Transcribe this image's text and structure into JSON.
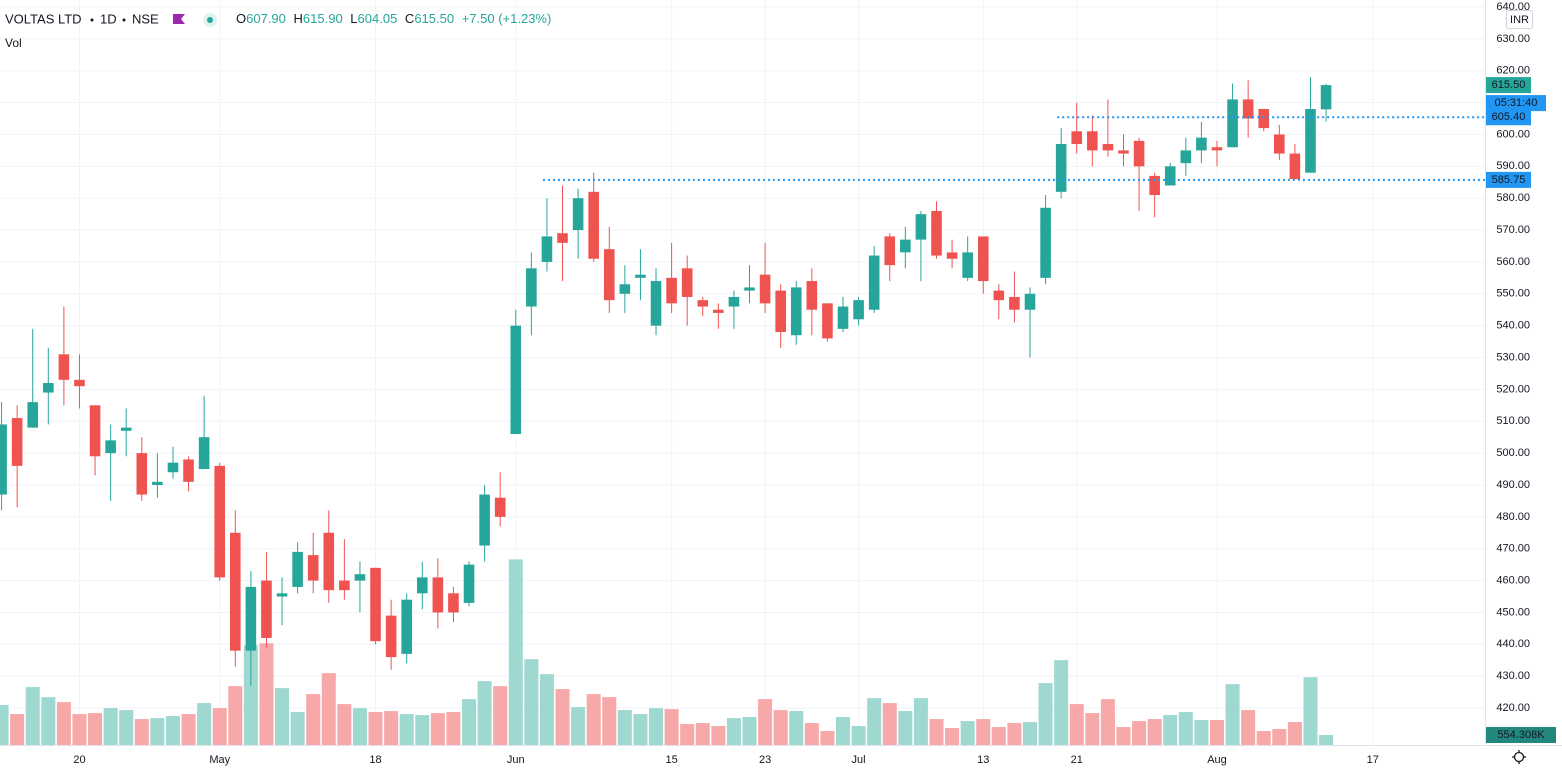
{
  "header": {
    "symbol": "VOLTAS LTD",
    "interval": "1D",
    "exchange": "NSE",
    "ohlc": [
      [
        "O",
        "607.90"
      ],
      [
        "H",
        "615.90"
      ],
      [
        "L",
        "604.05"
      ],
      [
        "C",
        "615.50"
      ]
    ],
    "change": "+7.50 (+1.23%)",
    "volume_title": "Vol",
    "currency": "INR"
  },
  "chart_data": {
    "type": "candlestick",
    "open": [
      487,
      511,
      508,
      519,
      531,
      523,
      515,
      500,
      507,
      500,
      490,
      494,
      498,
      495,
      496,
      475,
      438,
      460,
      455,
      458,
      468,
      475,
      460,
      460,
      464,
      449,
      437,
      456,
      461,
      456,
      453,
      471,
      486,
      506,
      546,
      560,
      569,
      570,
      582,
      564,
      550,
      555,
      540,
      555,
      558,
      548,
      545,
      546,
      551,
      556,
      551,
      537,
      554,
      547,
      539,
      542,
      545,
      568,
      563,
      567,
      576,
      563,
      555,
      568,
      551,
      549,
      545,
      555,
      582,
      601,
      601,
      597,
      595,
      598,
      587,
      584,
      591,
      595,
      596,
      596,
      611,
      608,
      600,
      594,
      588,
      607.9
    ],
    "high": [
      516,
      515,
      539,
      533,
      546,
      531,
      515,
      509,
      514,
      505,
      500,
      502,
      499,
      518,
      497,
      482,
      463,
      469,
      461,
      472,
      475,
      482,
      473,
      466,
      464,
      454,
      456,
      466,
      467,
      458,
      466,
      490,
      494,
      545,
      563,
      580,
      584,
      583,
      588,
      571,
      559,
      564,
      558,
      566,
      562,
      549,
      547,
      551,
      559,
      566,
      553,
      554,
      558,
      547,
      549,
      549,
      565,
      569,
      571,
      576,
      579,
      567,
      568,
      568,
      553,
      557,
      552,
      581,
      602,
      610,
      606,
      611,
      600,
      599,
      588,
      591,
      599,
      604,
      598,
      616,
      617,
      608,
      603,
      597,
      618,
      615.9
    ],
    "low": [
      482,
      483,
      508,
      509,
      515,
      514,
      493,
      485,
      499,
      485,
      486,
      492,
      488,
      495,
      460,
      433,
      427,
      439,
      446,
      456,
      456,
      453,
      454,
      450,
      440,
      432,
      434,
      451,
      445,
      447,
      452,
      466,
      477,
      506,
      537,
      557,
      554,
      561,
      560,
      544,
      544,
      548,
      537,
      544,
      540,
      543,
      539,
      539,
      547,
      544,
      533,
      534,
      537,
      535,
      538,
      540,
      544,
      554,
      558,
      554,
      561,
      558,
      554,
      550,
      542,
      541,
      530,
      553,
      580,
      594,
      590,
      593,
      590,
      576,
      574,
      584,
      587,
      591,
      590,
      596,
      599,
      601,
      592,
      586,
      588,
      604.05
    ],
    "close": [
      509,
      496,
      516,
      522,
      523,
      521,
      499,
      504,
      508,
      487,
      491,
      497,
      491,
      505,
      461,
      438,
      458,
      442,
      456,
      469,
      460,
      457,
      457,
      462,
      441,
      436,
      454,
      461,
      450,
      450,
      465,
      487,
      480,
      540,
      558,
      568,
      566,
      580,
      561,
      548,
      553,
      556,
      554,
      547,
      549,
      546,
      544,
      549,
      552,
      547,
      538,
      552,
      545,
      536,
      546,
      548,
      562,
      559,
      567,
      575,
      562,
      561,
      563,
      554,
      548,
      545,
      550,
      577,
      597,
      597,
      595,
      595,
      594,
      590,
      581,
      590,
      595,
      599,
      595,
      611,
      605,
      602,
      594,
      586,
      608,
      615.5
    ],
    "volume": [
      2217000,
      1718000,
      3215000,
      2661000,
      2384000,
      1718000,
      1774000,
      2051000,
      1940000,
      1441000,
      1497000,
      1607000,
      1718000,
      2328000,
      2051000,
      3270000,
      5543000,
      5654000,
      3160000,
      1829000,
      2827000,
      3991000,
      2273000,
      2051000,
      1829000,
      1885000,
      1718000,
      1663000,
      1774000,
      1829000,
      2550000,
      3548000,
      3270000,
      10310000,
      4767000,
      3936000,
      3104000,
      2106000,
      2827000,
      2661000,
      1940000,
      1718000,
      2051000,
      1996000,
      1164000,
      1219000,
      1053000,
      1497000,
      1552000,
      2550000,
      1940000,
      1885000,
      1219000,
      776000,
      1552000,
      1053000,
      2605000,
      2328000,
      1885000,
      2605000,
      1441000,
      942000,
      1330000,
      1441000,
      998000,
      1219000,
      1275000,
      3437000,
      4712000,
      2273000,
      1774000,
      2550000,
      998000,
      1330000,
      1441000,
      1663000,
      1829000,
      1386000,
      1386000,
      3381000,
      1940000,
      776000,
      887000,
      1275000,
      3769000,
      554308
    ],
    "volume_label": "554.308K",
    "volume_lim": [
      0,
      12000000
    ],
    "xlim": [
      -0.1,
      95.2
    ],
    "xticks": [
      {
        "value": 5,
        "label": "20"
      },
      {
        "value": 14,
        "label": "May"
      },
      {
        "value": 24,
        "label": "18"
      },
      {
        "value": 33,
        "label": "Jun"
      },
      {
        "value": 43,
        "label": "15"
      },
      {
        "value": 49,
        "label": "23"
      },
      {
        "value": 55,
        "label": "Jul"
      },
      {
        "value": 63,
        "label": "13"
      },
      {
        "value": 69,
        "label": "21"
      },
      {
        "value": 78,
        "label": "Aug"
      },
      {
        "value": 88,
        "label": "17"
      }
    ],
    "ylim": [
      408.4,
      642.2
    ],
    "yticks": [
      {
        "value": 420,
        "label": "420.00"
      },
      {
        "value": 430,
        "label": "430.00"
      },
      {
        "value": 440,
        "label": "440.00"
      },
      {
        "value": 450,
        "label": "450.00"
      },
      {
        "value": 460,
        "label": "460.00"
      },
      {
        "value": 470,
        "label": "470.00"
      },
      {
        "value": 480,
        "label": "480.00"
      },
      {
        "value": 490,
        "label": "490.00"
      },
      {
        "value": 500,
        "label": "500.00"
      },
      {
        "value": 510,
        "label": "510.00"
      },
      {
        "value": 520,
        "label": "520.00"
      },
      {
        "value": 530,
        "label": "530.00"
      },
      {
        "value": 540,
        "label": "540.00"
      },
      {
        "value": 550,
        "label": "550.00"
      },
      {
        "value": 560,
        "label": "560.00"
      },
      {
        "value": 570,
        "label": "570.00"
      },
      {
        "value": 580,
        "label": "580.00"
      },
      {
        "value": 590,
        "label": "590.00"
      },
      {
        "value": 600,
        "label": "600.00"
      },
      {
        "value": 610,
        "label": "610.00"
      },
      {
        "value": 620,
        "label": "620.00"
      },
      {
        "value": 630,
        "label": "630.00"
      },
      {
        "value": 640,
        "label": "640.00"
      }
    ],
    "grid": true,
    "up_color": "#26a69a",
    "down_color": "#ef5350",
    "volume_up_color": "#9fd8d1",
    "volume_down_color": "#f7a9a9",
    "last_price_label": "615.50",
    "countdown": "05:31:40",
    "levels": [
      {
        "value": 605.4,
        "label": "605.40"
      },
      {
        "value": 585.75,
        "label": "585.75"
      }
    ],
    "level_color": "#2196f3"
  }
}
